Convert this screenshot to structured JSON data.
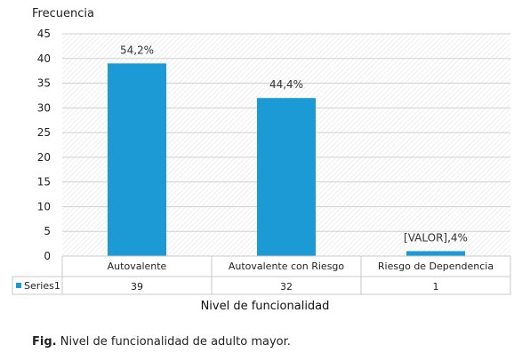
{
  "chart_data": {
    "type": "bar",
    "categories": [
      "Autovalente",
      "Autovalente con Riesgo",
      "Riesgo de Dependencia"
    ],
    "series": [
      {
        "name": "Series1",
        "values": [
          39,
          32,
          1
        ],
        "color": "#1b9ad6"
      }
    ],
    "data_labels": [
      "54,2%",
      "44,4%",
      "[VALOR],4%"
    ],
    "ylabel": "Frecuencia",
    "xlabel": "Nivel de funcionalidad",
    "ylim": [
      0,
      45
    ],
    "y_ticks": [
      0,
      5,
      10,
      15,
      20,
      25,
      30,
      35,
      40,
      45
    ],
    "grid": true,
    "data_table": true,
    "legend": "data-table"
  },
  "caption": {
    "prefix": "Fig.",
    "text": " Nivel de funcionalidad de adulto mayor."
  }
}
